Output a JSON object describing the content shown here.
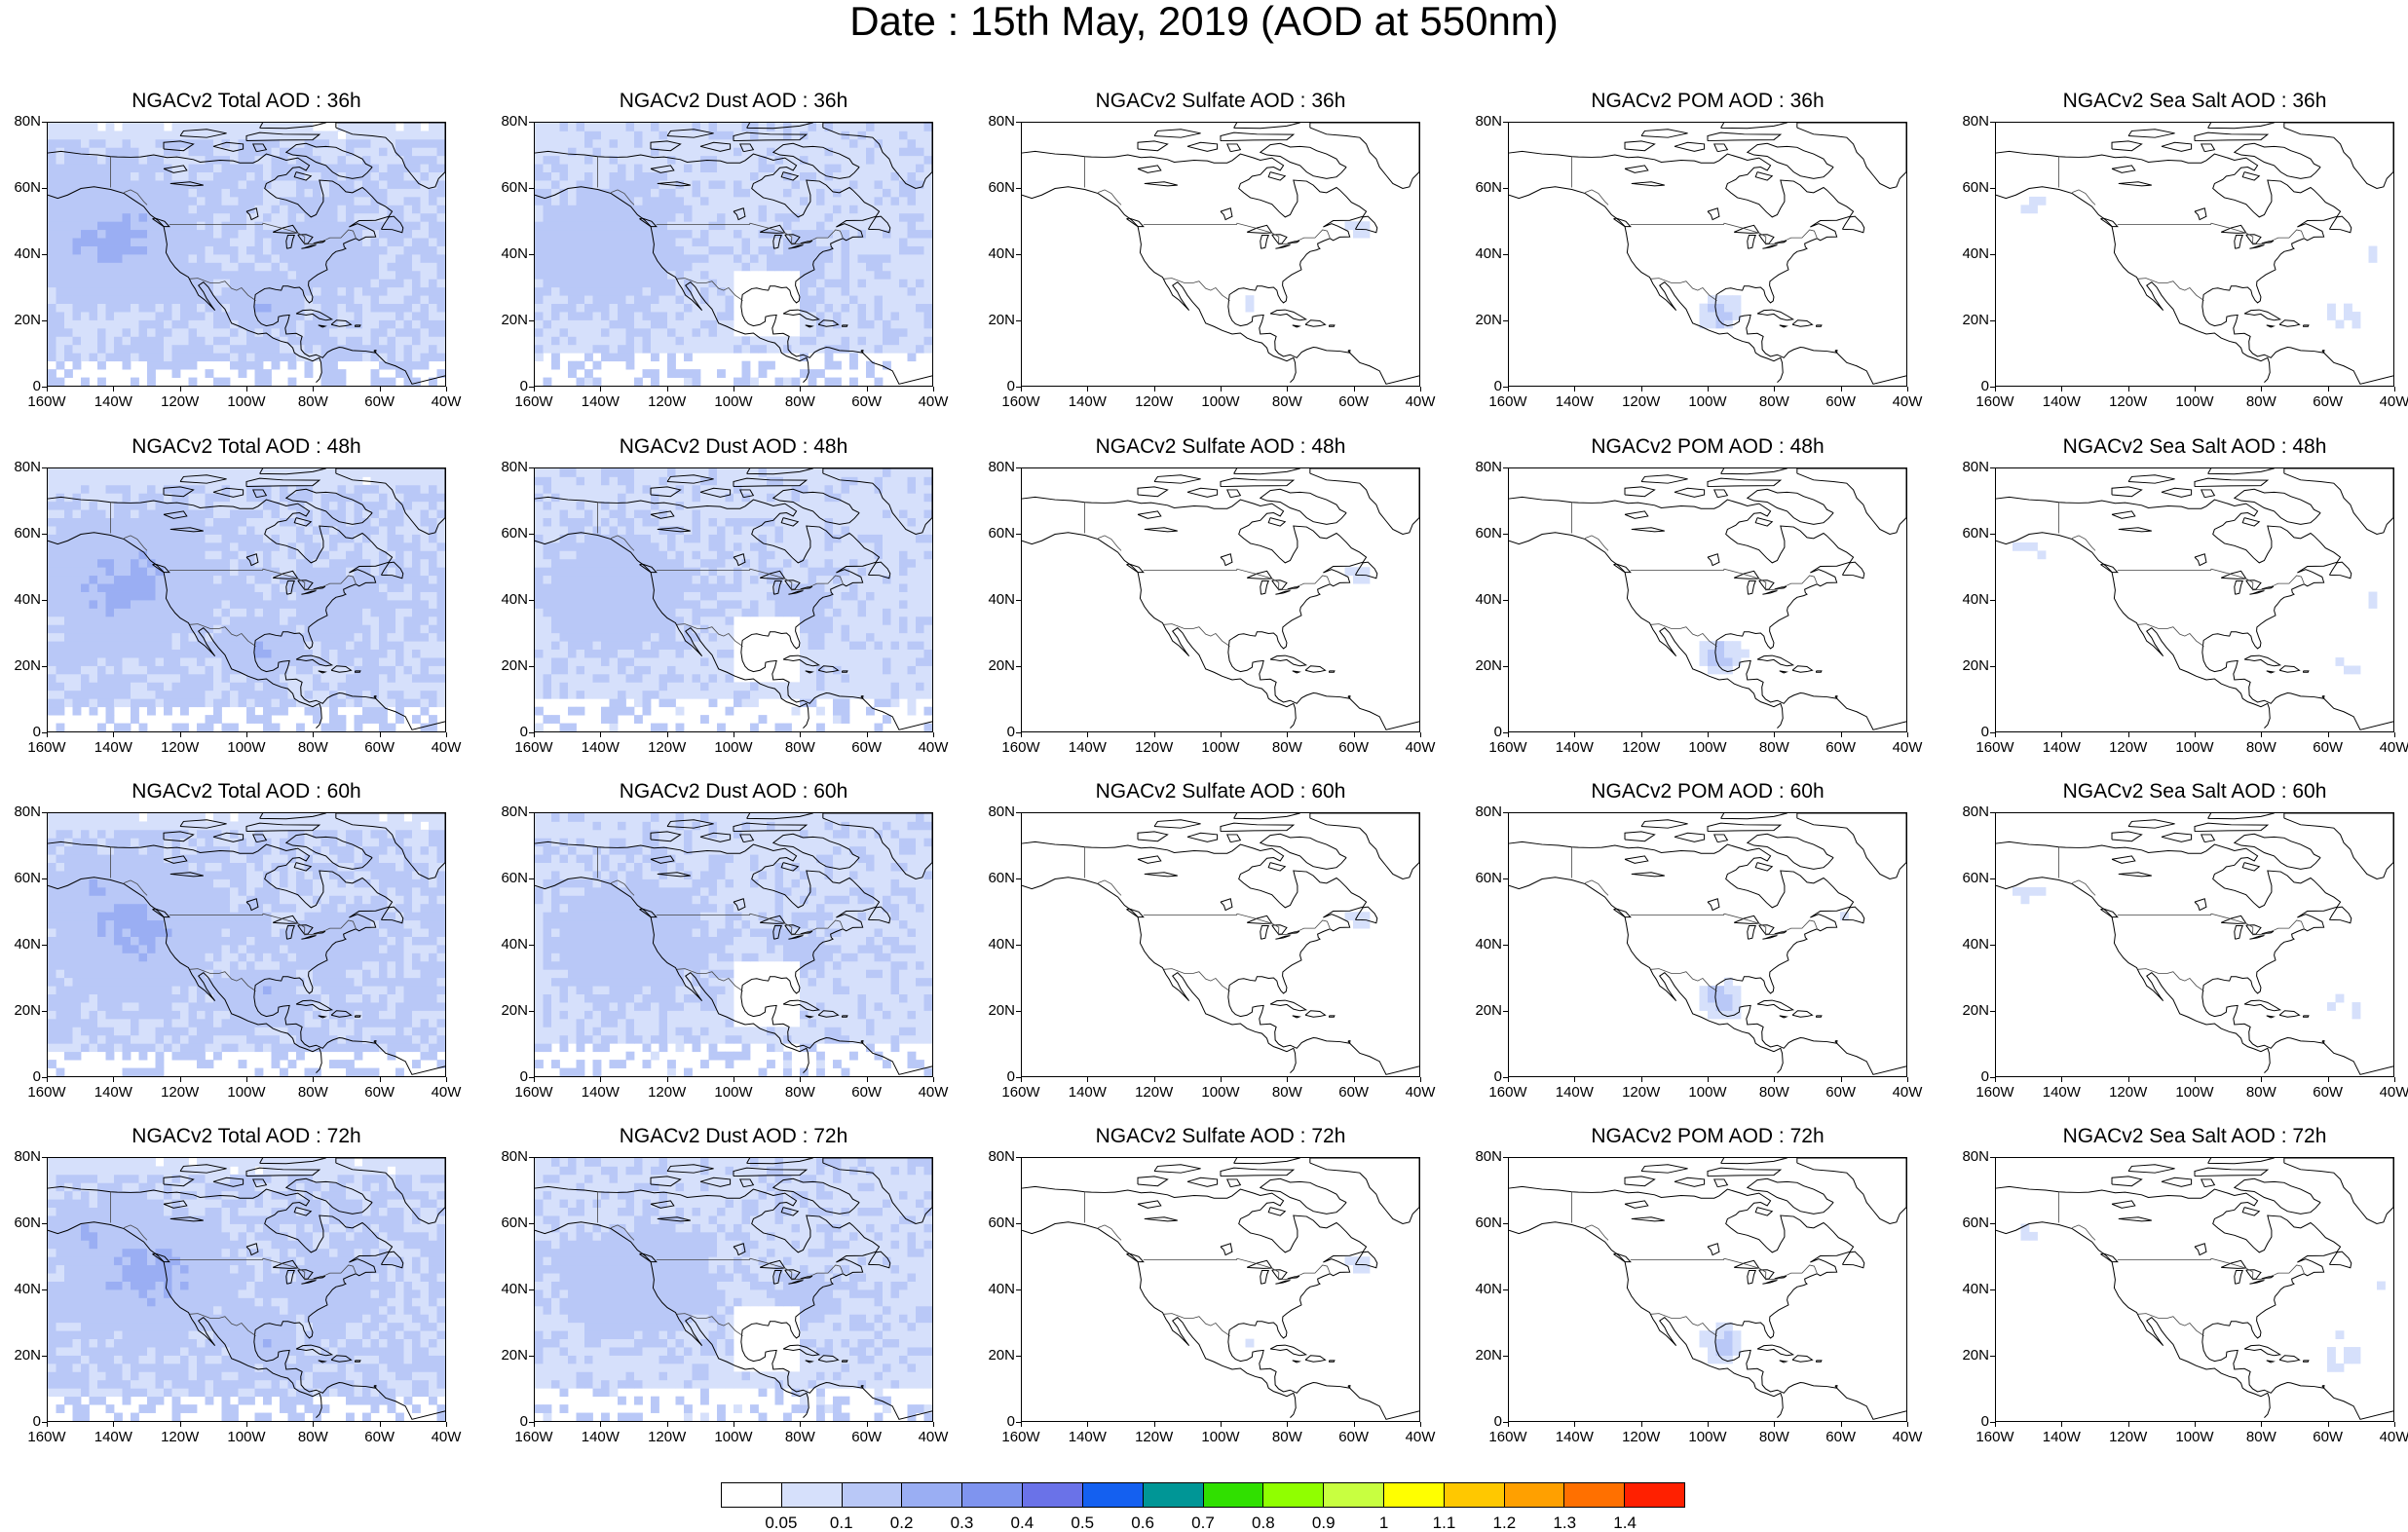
{
  "title": "Date : 15th May, 2019 (AOD at 550nm)",
  "rows": [
    {
      "panels": [
        {
          "title": "NGACv2 Total AOD : 36h",
          "field": "total"
        },
        {
          "title": "NGACv2 Dust AOD : 36h",
          "field": "dust"
        },
        {
          "title": "NGACv2 Sulfate AOD : 36h",
          "field": "sulfate"
        },
        {
          "title": "NGACv2 POM AOD : 36h",
          "field": "pom"
        },
        {
          "title": "NGACv2 Sea Salt AOD : 36h",
          "field": "seasalt"
        }
      ]
    },
    {
      "panels": [
        {
          "title": "NGACv2 Total AOD : 48h",
          "field": "total"
        },
        {
          "title": "NGACv2 Dust AOD : 48h",
          "field": "dust"
        },
        {
          "title": "NGACv2 Sulfate AOD : 48h",
          "field": "sulfate"
        },
        {
          "title": "NGACv2 POM AOD : 48h",
          "field": "pom"
        },
        {
          "title": "NGACv2 Sea Salt AOD : 48h",
          "field": "seasalt"
        }
      ]
    },
    {
      "panels": [
        {
          "title": "NGACv2 Total AOD : 60h",
          "field": "total"
        },
        {
          "title": "NGACv2 Dust AOD : 60h",
          "field": "dust"
        },
        {
          "title": "NGACv2 Sulfate AOD : 60h",
          "field": "sulfate"
        },
        {
          "title": "NGACv2 POM AOD : 60h",
          "field": "pom"
        },
        {
          "title": "NGACv2 Sea Salt AOD : 60h",
          "field": "seasalt"
        }
      ]
    },
    {
      "panels": [
        {
          "title": "NGACv2 Total AOD : 72h",
          "field": "total"
        },
        {
          "title": "NGACv2 Dust AOD : 72h",
          "field": "dust"
        },
        {
          "title": "NGACv2 Sulfate AOD : 72h",
          "field": "sulfate"
        },
        {
          "title": "NGACv2 POM AOD : 72h",
          "field": "pom"
        },
        {
          "title": "NGACv2 Sea Salt  AOD : 72h",
          "field": "seasalt"
        }
      ]
    }
  ],
  "lat_labels": [
    "80N",
    "60N",
    "40N",
    "20N",
    "0"
  ],
  "lon_labels": [
    "160W",
    "140W",
    "120W",
    "100W",
    "80W",
    "60W",
    "40W"
  ],
  "colorbar": {
    "colors": [
      "#ffffff",
      "#d6e0fb",
      "#b9c8f7",
      "#9aaef3",
      "#7f94ef",
      "#6a72e8",
      "#1460f0",
      "#009696",
      "#30e000",
      "#90ff00",
      "#c8ff40",
      "#ffff00",
      "#ffc800",
      "#ffa000",
      "#ff7000",
      "#ff2000"
    ],
    "labels": [
      "0.05",
      "0.1",
      "0.2",
      "0.3",
      "0.4",
      "0.5",
      "0.6",
      "0.7",
      "0.8",
      "0.9",
      "1",
      "1.1",
      "1.2",
      "1.3",
      "1.4"
    ]
  }
}
